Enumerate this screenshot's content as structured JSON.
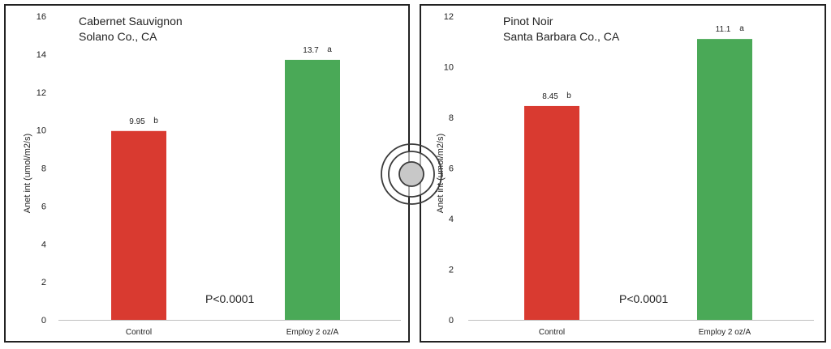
{
  "charts": [
    {
      "title_line1": "Cabernet Sauvignon",
      "title_line2": "Solano Co., CA",
      "pvalue": "P<0.0001",
      "chart_data": {
        "type": "bar",
        "categories": [
          "Control",
          "Employ 2 oz/A"
        ],
        "values": [
          9.95,
          13.7
        ],
        "value_labels": [
          "9.95",
          "13.7"
        ],
        "significance": [
          "b",
          "a"
        ],
        "bar_colors": [
          "#d93a30",
          "#4aa957"
        ],
        "ylabel": "Anet int (umol/m2/s)",
        "ylim": [
          0,
          16
        ],
        "yticks": [
          0,
          2,
          4,
          6,
          8,
          10,
          12,
          14,
          16
        ],
        "grid": false,
        "legend": "none"
      }
    },
    {
      "title_line1": "Pinot Noir",
      "title_line2": "Santa Barbara Co., CA",
      "pvalue": "P<0.0001",
      "chart_data": {
        "type": "bar",
        "categories": [
          "Control",
          "Employ 2 oz/A"
        ],
        "values": [
          8.45,
          11.1
        ],
        "value_labels": [
          "8.45",
          "11.1"
        ],
        "significance": [
          "b",
          "a"
        ],
        "bar_colors": [
          "#d93a30",
          "#4aa957"
        ],
        "ylabel": "Anet int (umol/m2/s)",
        "ylim": [
          0,
          12
        ],
        "yticks": [
          0,
          2,
          4,
          6,
          8,
          10,
          12
        ],
        "grid": false,
        "legend": "none"
      }
    }
  ],
  "colors": {
    "border": "#222222",
    "axis": "#bfbfbf",
    "text": "#222222"
  },
  "cursor_icon": "touch-pointer-icon"
}
